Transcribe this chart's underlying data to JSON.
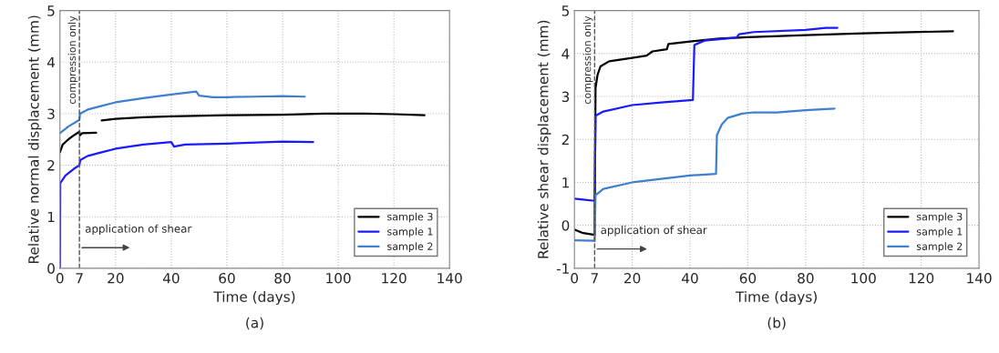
{
  "chart_data": [
    {
      "type": "line",
      "xlabel": "Time (days)",
      "ylabel": "Relative normal displacement (mm)",
      "xlim": [
        0,
        140
      ],
      "ylim": [
        0,
        5
      ],
      "xticks": [
        0,
        7,
        20,
        40,
        60,
        80,
        100,
        120,
        140
      ],
      "yticks": [
        0,
        1,
        2,
        3,
        4,
        5
      ],
      "grid": true,
      "legend": "bottom right",
      "line_style": "solid",
      "ref_lines": [
        {
          "axis": "x",
          "value": 7,
          "label": "compression only",
          "color": "#555555",
          "line_style": "dashed"
        }
      ],
      "annotations": [
        {
          "text": "application of shear",
          "x": 7,
          "y": 0.4
        },
        "(a)"
      ],
      "series": [
        {
          "name": "sample 3",
          "color": "#000000",
          "x": [
            0,
            1,
            3,
            5,
            7,
            7.2,
            8,
            13,
            14,
            15,
            20,
            30,
            40,
            60,
            80,
            95,
            110,
            120,
            131
          ],
          "values": [
            2.25,
            2.4,
            2.5,
            2.58,
            2.65,
            2.58,
            2.62,
            2.63,
            null,
            2.87,
            2.9,
            2.93,
            2.95,
            2.97,
            2.98,
            3.0,
            3.0,
            2.99,
            2.97
          ]
        },
        {
          "name": "sample 1",
          "color": "#1a1aff",
          "x": [
            0,
            0.1,
            2,
            5,
            7,
            7.3,
            10,
            15,
            20,
            30,
            40,
            41,
            45,
            60,
            80,
            91
          ],
          "values": [
            0,
            1.65,
            1.8,
            1.93,
            2.0,
            2.1,
            2.18,
            2.25,
            2.32,
            2.4,
            2.45,
            2.36,
            2.4,
            2.42,
            2.46,
            2.45
          ]
        },
        {
          "name": "sample 2",
          "color": "#3f7fcf",
          "x": [
            0,
            3,
            7,
            7.2,
            10,
            15,
            20,
            30,
            40,
            49,
            50,
            55,
            60,
            70,
            80,
            88
          ],
          "values": [
            2.62,
            2.75,
            2.88,
            3.0,
            3.08,
            3.15,
            3.22,
            3.3,
            3.37,
            3.43,
            3.35,
            3.32,
            3.32,
            3.33,
            3.34,
            3.33
          ]
        }
      ]
    },
    {
      "type": "line",
      "xlabel": "Time (days)",
      "ylabel": "Relative shear displacement (mm)",
      "xlim": [
        0,
        140
      ],
      "ylim": [
        -1,
        5
      ],
      "xticks": [
        0,
        7,
        20,
        40,
        60,
        80,
        100,
        120,
        140
      ],
      "yticks": [
        -1,
        0,
        1,
        2,
        3,
        4,
        5
      ],
      "grid": true,
      "legend": "bottom right",
      "line_style": "solid",
      "ref_lines": [
        {
          "axis": "x",
          "value": 7,
          "label": "compression only",
          "color": "#555555",
          "line_style": "dashed"
        }
      ],
      "annotations": [
        {
          "text": "application of shear",
          "x": 7,
          "y": -0.55
        },
        "(b)"
      ],
      "series": [
        {
          "name": "sample 3",
          "color": "#000000",
          "x": [
            0,
            3,
            7,
            7.3,
            8,
            9,
            12,
            20,
            25,
            27,
            32,
            32.5,
            40,
            50,
            60,
            80,
            100,
            131
          ],
          "values": [
            -0.1,
            -0.18,
            -0.22,
            3.2,
            3.5,
            3.7,
            3.82,
            3.9,
            3.95,
            4.05,
            4.1,
            4.22,
            4.28,
            4.35,
            4.38,
            4.43,
            4.47,
            4.52
          ]
        },
        {
          "name": "sample 1",
          "color": "#1a1aff",
          "x": [
            0,
            3,
            7,
            7.3,
            10,
            20,
            30,
            41,
            41.5,
            45,
            56,
            57,
            62,
            80,
            87,
            91
          ],
          "values": [
            0.62,
            0.6,
            0.57,
            2.55,
            2.65,
            2.8,
            2.86,
            2.92,
            4.2,
            4.3,
            4.37,
            4.45,
            4.5,
            4.55,
            4.6,
            4.6
          ]
        },
        {
          "name": "sample 2",
          "color": "#3f7fcf",
          "x": [
            0,
            7,
            7.3,
            10,
            20,
            30,
            40,
            49,
            49.3,
            51,
            53,
            58,
            62,
            70,
            80,
            90
          ],
          "values": [
            -0.35,
            -0.36,
            0.7,
            0.85,
            1.0,
            1.08,
            1.16,
            1.2,
            2.1,
            2.35,
            2.5,
            2.6,
            2.63,
            2.63,
            2.68,
            2.72
          ]
        }
      ]
    }
  ]
}
